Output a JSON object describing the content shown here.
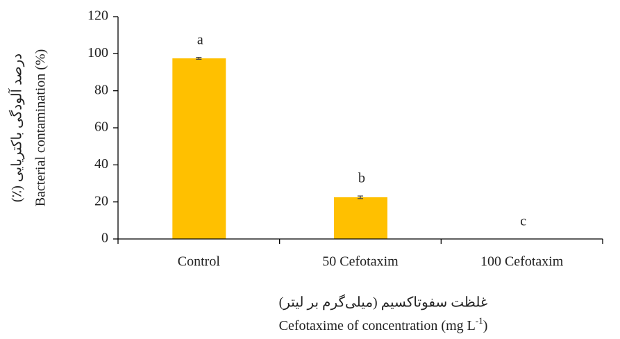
{
  "chart_data": {
    "type": "bar",
    "categories": [
      "Control",
      "50 Cefotaxim",
      "100 Cefotaxim"
    ],
    "values": [
      97.5,
      22.5,
      0
    ],
    "errors": [
      0.5,
      0.7,
      0
    ],
    "annotations": [
      "a",
      "b",
      "c"
    ],
    "color": "#FFC000",
    "ylim": [
      0,
      120
    ],
    "yticks": [
      0,
      20,
      40,
      60,
      80,
      100,
      120
    ],
    "grid": false,
    "ylabel_fa": "درصد آلودگی باکتریایی (٪)",
    "ylabel_en": "Bacterial contamination (%)",
    "xlabel_fa": "غلظت سفوتاکسیم (میلی‌گرم بر لیتر)",
    "xlabel_en": [
      "Cefotaxime of concentration (mg L",
      "-1",
      ")"
    ]
  }
}
